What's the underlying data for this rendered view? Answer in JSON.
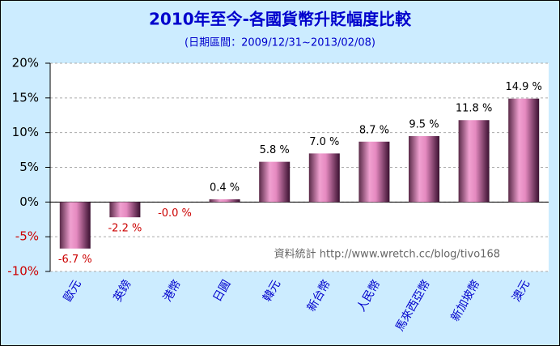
{
  "chart_data": {
    "type": "bar",
    "title": "2010年至今-各國貨幣升貶幅度比較",
    "subtitle": "(日期區間：2009/12/31~2013/02/08)",
    "annotation": "資料統計 http://www.wretch.cc/blog/tivo168",
    "categories": [
      "歐元",
      "英鎊",
      "港幣",
      "日圓",
      "韓元",
      "新台幣",
      "人民幣",
      "馬來西亞幣",
      "新加坡幣",
      "澳元"
    ],
    "values": [
      -6.7,
      -2.2,
      -0.0,
      0.4,
      5.8,
      7.0,
      8.7,
      9.5,
      11.8,
      14.9
    ],
    "value_labels": [
      "-6.7 %",
      "-2.2 %",
      "-0.0 %",
      "0.4 %",
      "5.8 %",
      "7.0 %",
      "8.7 %",
      "9.5 %",
      "11.8 %",
      "14.9 %"
    ],
    "color": "#e58ac0",
    "ylim": [
      -10,
      20
    ],
    "yticks": [
      {
        "value": -10,
        "label": "-10%"
      },
      {
        "value": -5,
        "label": "-5%"
      },
      {
        "value": 0,
        "label": "0%"
      },
      {
        "value": 5,
        "label": "5%"
      },
      {
        "value": 10,
        "label": "10%"
      },
      {
        "value": 15,
        "label": "15%"
      },
      {
        "value": 20,
        "label": "20%"
      }
    ],
    "grid": true
  }
}
